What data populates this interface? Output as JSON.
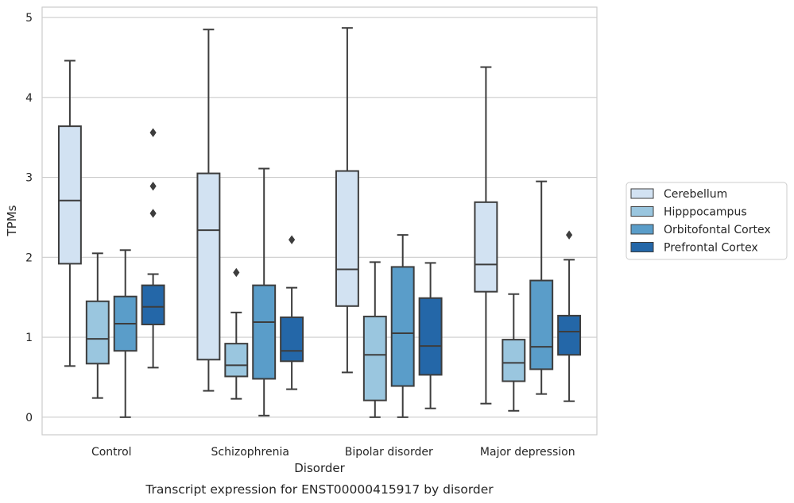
{
  "chart_data": {
    "type": "boxplot",
    "title": "",
    "xlabel": "Disorder",
    "ylabel": "TPMs",
    "caption": "Transcript expression for ENST00000415917 by disorder",
    "categories": [
      "Control",
      "Schizophrenia",
      "Bipolar disorder",
      "Major depression"
    ],
    "ylim": [
      -0.22,
      5.13
    ],
    "yticks": [
      0,
      1,
      2,
      3,
      4,
      5
    ],
    "grid": "horizontal",
    "legend_position": "right",
    "series": [
      {
        "name": "Cerebellum",
        "color": "#d2e2f2",
        "boxes": [
          {
            "whislo": 0.64,
            "q1": 1.92,
            "med": 2.71,
            "q3": 3.64,
            "whishi": 4.46,
            "fliers": []
          },
          {
            "whislo": 0.33,
            "q1": 0.72,
            "med": 2.34,
            "q3": 3.05,
            "whishi": 4.85,
            "fliers": []
          },
          {
            "whislo": 0.56,
            "q1": 1.39,
            "med": 1.85,
            "q3": 3.08,
            "whishi": 4.87,
            "fliers": []
          },
          {
            "whislo": 0.17,
            "q1": 1.57,
            "med": 1.91,
            "q3": 2.69,
            "whishi": 4.38,
            "fliers": []
          }
        ]
      },
      {
        "name": "Hipppocampus",
        "color": "#9ac6df",
        "boxes": [
          {
            "whislo": 0.24,
            "q1": 0.67,
            "med": 0.98,
            "q3": 1.45,
            "whishi": 2.05,
            "fliers": []
          },
          {
            "whislo": 0.23,
            "q1": 0.51,
            "med": 0.65,
            "q3": 0.92,
            "whishi": 1.31,
            "fliers": [
              1.81
            ]
          },
          {
            "whislo": 0.0,
            "q1": 0.21,
            "med": 0.78,
            "q3": 1.26,
            "whishi": 1.94,
            "fliers": []
          },
          {
            "whislo": 0.08,
            "q1": 0.45,
            "med": 0.68,
            "q3": 0.97,
            "whishi": 1.54,
            "fliers": []
          }
        ]
      },
      {
        "name": "Orbitofontal Cortex",
        "color": "#5a9dc9",
        "boxes": [
          {
            "whislo": 0.0,
            "q1": 0.83,
            "med": 1.17,
            "q3": 1.51,
            "whishi": 2.09,
            "fliers": []
          },
          {
            "whislo": 0.02,
            "q1": 0.48,
            "med": 1.19,
            "q3": 1.65,
            "whishi": 3.11,
            "fliers": []
          },
          {
            "whislo": 0.0,
            "q1": 0.39,
            "med": 1.05,
            "q3": 1.88,
            "whishi": 2.28,
            "fliers": []
          },
          {
            "whislo": 0.29,
            "q1": 0.6,
            "med": 0.88,
            "q3": 1.71,
            "whishi": 2.95,
            "fliers": []
          }
        ]
      },
      {
        "name": "Prefrontal Cortex",
        "color": "#2467a8",
        "boxes": [
          {
            "whislo": 0.62,
            "q1": 1.16,
            "med": 1.38,
            "q3": 1.65,
            "whishi": 1.79,
            "fliers": [
              2.55,
              2.89,
              3.56
            ]
          },
          {
            "whislo": 0.35,
            "q1": 0.7,
            "med": 0.83,
            "q3": 1.25,
            "whishi": 1.62,
            "fliers": [
              2.22
            ]
          },
          {
            "whislo": 0.11,
            "q1": 0.53,
            "med": 0.89,
            "q3": 1.49,
            "whishi": 1.93,
            "fliers": []
          },
          {
            "whislo": 0.2,
            "q1": 0.78,
            "med": 1.07,
            "q3": 1.27,
            "whishi": 1.97,
            "fliers": [
              2.28
            ]
          }
        ]
      }
    ]
  },
  "colors": {
    "grid": "#cccccc",
    "frame": "#cccccc",
    "box_edge": "#3d3d3d",
    "text": "#262626",
    "background": "#ffffff"
  }
}
